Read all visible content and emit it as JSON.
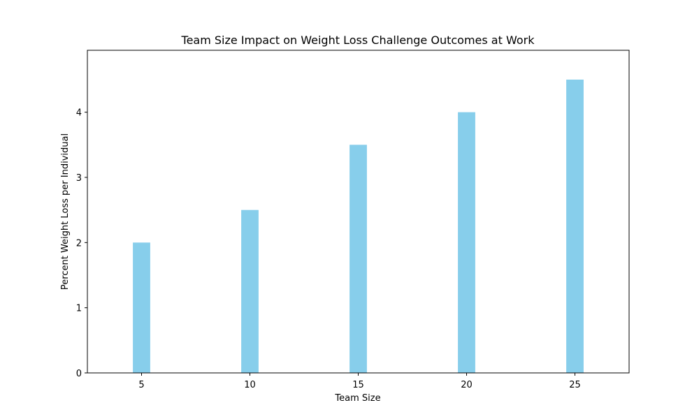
{
  "chart_data": {
    "type": "bar",
    "title": "Team Size Impact on Weight Loss Challenge Outcomes at Work",
    "xlabel": "Team Size",
    "ylabel": "Percent Weight Loss per Individual",
    "x": [
      5,
      10,
      15,
      20,
      25
    ],
    "values": [
      2.0,
      2.5,
      3.5,
      4.0,
      4.5
    ],
    "bar_width": 0.8,
    "xlim": [
      2.5,
      27.5
    ],
    "ylim": [
      0,
      4.95
    ],
    "xticks": [
      5,
      10,
      15,
      20,
      25
    ],
    "yticks": [
      0,
      1,
      2,
      3,
      4
    ],
    "grid": false,
    "colors": {
      "bar": "#87ceeb",
      "axes": "#000000",
      "background": "#ffffff"
    }
  }
}
